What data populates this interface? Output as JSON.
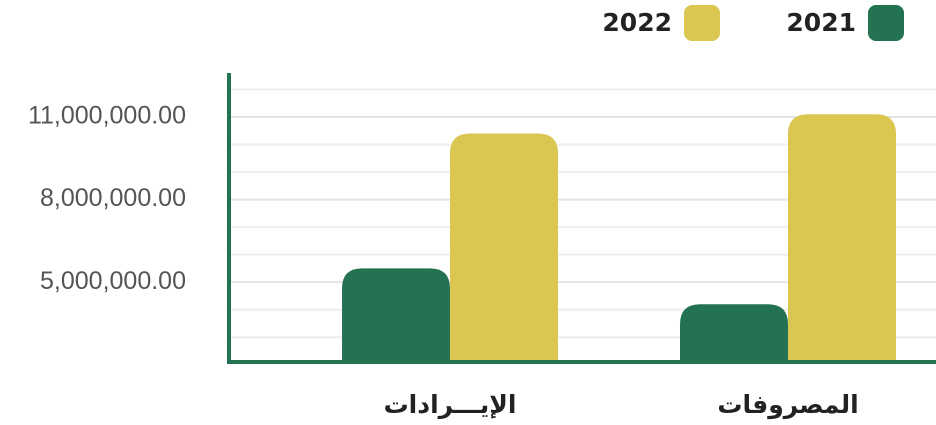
{
  "chart_data": {
    "type": "bar",
    "categories": [
      "المصروفات",
      "الإيـــرادات"
    ],
    "series": [
      {
        "name": "2021",
        "color": "#237352",
        "values": [
          4200000,
          5500000
        ]
      },
      {
        "name": "2022",
        "color": "#dbc651",
        "values": [
          11100000,
          10400000
        ]
      }
    ],
    "ylim": [
      2100000,
      12600000
    ],
    "yticks": [
      {
        "value": 5000000,
        "label": "5,000,000.00"
      },
      {
        "value": 8000000,
        "label": "8,000,000.00"
      },
      {
        "value": 11000000,
        "label": "11,000,000.00"
      }
    ],
    "minor_grid": [
      3000000,
      4000000,
      6000000,
      7000000,
      9000000,
      10000000,
      12000000
    ],
    "grid": true,
    "direction": "rtl",
    "axis_color": "#237352"
  }
}
